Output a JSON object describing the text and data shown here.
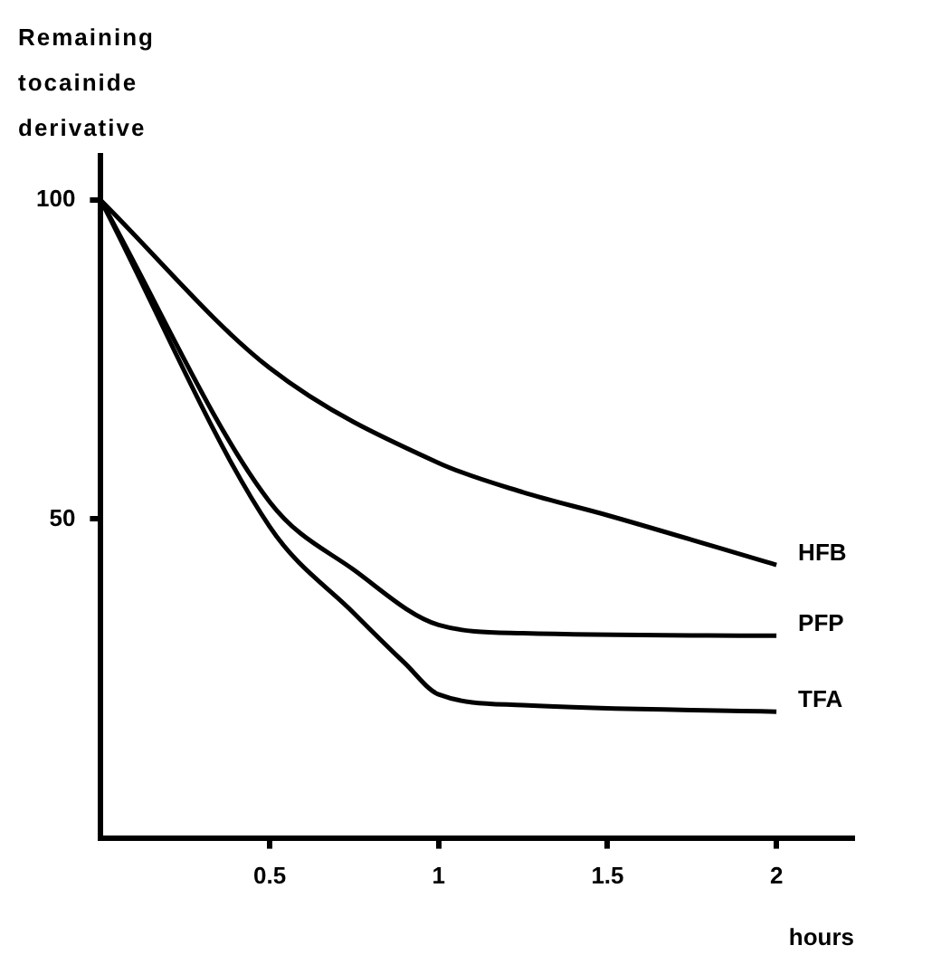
{
  "chart_data": {
    "type": "line",
    "ylabel": "Remaining tocainide derivative",
    "xlabel": "hours",
    "xlim": [
      0,
      2.23
    ],
    "xticks": [
      0.5,
      1,
      1.5,
      2
    ],
    "ylim": [
      0,
      107
    ],
    "yticks": [
      50,
      100
    ],
    "series": [
      {
        "name": "HFB",
        "color": "#000000",
        "x": [
          0,
          0.5,
          1,
          1.25,
          1.5,
          2
        ],
        "values": [
          100,
          73.7,
          58.8,
          54.2,
          50.6,
          42.8
        ]
      },
      {
        "name": "PFP",
        "color": "#000000",
        "x": [
          0,
          0.5,
          0.75,
          1,
          1.25,
          2
        ],
        "values": [
          100,
          52.7,
          42,
          33.4,
          32.1,
          31.7
        ]
      },
      {
        "name": "TFA",
        "color": "#000000",
        "x": [
          0,
          0.5,
          0.75,
          0.9,
          1,
          1.25,
          2
        ],
        "values": [
          100,
          48.8,
          35.2,
          27.4,
          22.5,
          20.8,
          19.8
        ]
      }
    ]
  }
}
